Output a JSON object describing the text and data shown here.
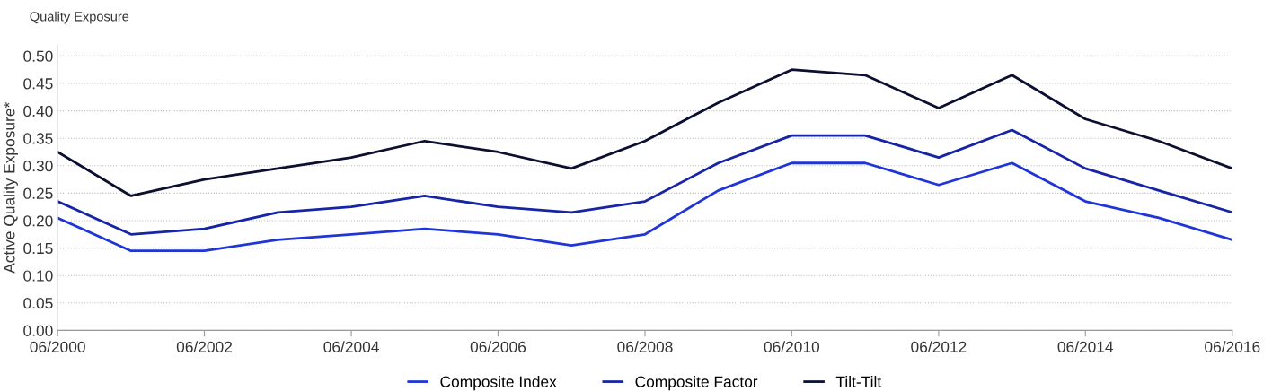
{
  "chart_data": {
    "type": "line",
    "title": "Quality Exposure",
    "ylabel": "Active Quality Exposure*",
    "x": [
      "2000-06",
      "2001-06",
      "2002-06",
      "2003-06",
      "2004-06",
      "2005-06",
      "2006-06",
      "2007-06",
      "2008-06",
      "2009-06",
      "2010-06",
      "2011-06",
      "2012-06",
      "2013-06",
      "2014-06",
      "2015-06",
      "2016-06"
    ],
    "series": [
      {
        "name": "Composite Index",
        "color": "#1f35d8",
        "values": [
          0.205,
          0.145,
          0.145,
          0.165,
          0.175,
          0.185,
          0.175,
          0.155,
          0.175,
          0.255,
          0.305,
          0.305,
          0.265,
          0.305,
          0.235,
          0.205,
          0.165
        ]
      },
      {
        "name": "Composite Factor",
        "color": "#1624a6",
        "values": [
          0.235,
          0.175,
          0.185,
          0.215,
          0.225,
          0.245,
          0.225,
          0.215,
          0.235,
          0.305,
          0.355,
          0.355,
          0.315,
          0.365,
          0.295,
          0.255,
          0.215
        ]
      },
      {
        "name": "Tilt-Tilt",
        "color": "#0b1030",
        "values": [
          0.325,
          0.245,
          0.275,
          0.295,
          0.315,
          0.345,
          0.325,
          0.295,
          0.345,
          0.415,
          0.475,
          0.465,
          0.405,
          0.465,
          0.385,
          0.345,
          0.295
        ]
      }
    ],
    "xlim": [
      "2000-06",
      "2016-06"
    ],
    "xticks": [
      {
        "value": "2000-06",
        "label": "06/2000"
      },
      {
        "value": "2002-06",
        "label": "06/2002"
      },
      {
        "value": "2004-06",
        "label": "06/2004"
      },
      {
        "value": "2006-06",
        "label": "06/2006"
      },
      {
        "value": "2008-06",
        "label": "06/2008"
      },
      {
        "value": "2010-06",
        "label": "06/2010"
      },
      {
        "value": "2012-06",
        "label": "06/2012"
      },
      {
        "value": "2014-06",
        "label": "06/2014"
      },
      {
        "value": "2016-06",
        "label": "06/2016"
      }
    ],
    "ylim": [
      0,
      0.52
    ],
    "yticks": [
      {
        "value": 0,
        "label": "0.00"
      },
      {
        "value": 0.05,
        "label": "0.05"
      },
      {
        "value": 0.1,
        "label": "0.10"
      },
      {
        "value": 0.15,
        "label": "0.15"
      },
      {
        "value": 0.2,
        "label": "0.20"
      },
      {
        "value": 0.25,
        "label": "0.25"
      },
      {
        "value": 0.3,
        "label": "0.30"
      },
      {
        "value": 0.35,
        "label": "0.35"
      },
      {
        "value": 0.4,
        "label": "0.40"
      },
      {
        "value": 0.45,
        "label": "0.45"
      },
      {
        "value": 0.5,
        "label": "0.50"
      }
    ],
    "grid": "y",
    "legend": "bottom",
    "marker": "none",
    "line_style": "solid"
  }
}
